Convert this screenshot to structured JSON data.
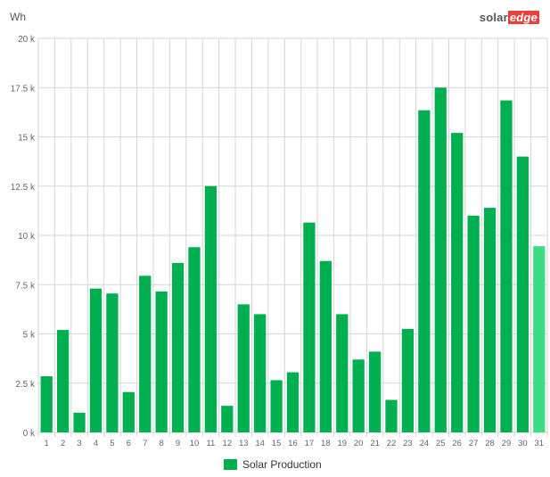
{
  "unit_label": "Wh",
  "logo": {
    "part1": "solar",
    "part2": "edge"
  },
  "colors": {
    "bar": "#00b050",
    "bar_current": "#3ddc84",
    "grid": "#d6d6d6",
    "axis_text": "#666666"
  },
  "chart_data": {
    "type": "bar",
    "ylabel": "Wh",
    "ylim": [
      0,
      20000
    ],
    "yticks": [
      "0 k",
      "2.5 k",
      "5 k",
      "7.5 k",
      "10 k",
      "12.5 k",
      "15 k",
      "17.5 k",
      "20 k"
    ],
    "categories": [
      "1",
      "2",
      "3",
      "4",
      "5",
      "6",
      "7",
      "8",
      "9",
      "10",
      "11",
      "12",
      "13",
      "14",
      "15",
      "16",
      "17",
      "18",
      "19",
      "20",
      "21",
      "22",
      "23",
      "24",
      "25",
      "26",
      "27",
      "28",
      "29",
      "30",
      "31"
    ],
    "series": [
      {
        "name": "Solar Production",
        "values": [
          2850,
          5200,
          1000,
          7300,
          7050,
          2050,
          7950,
          7150,
          8600,
          9400,
          12500,
          1350,
          6500,
          6000,
          2650,
          3050,
          10650,
          8700,
          6000,
          3700,
          4100,
          1650,
          5250,
          16350,
          17500,
          15200,
          11000,
          11400,
          16850,
          14000,
          9450
        ]
      }
    ],
    "highlight_last": true,
    "grid": true,
    "legend": "bottom-center"
  }
}
